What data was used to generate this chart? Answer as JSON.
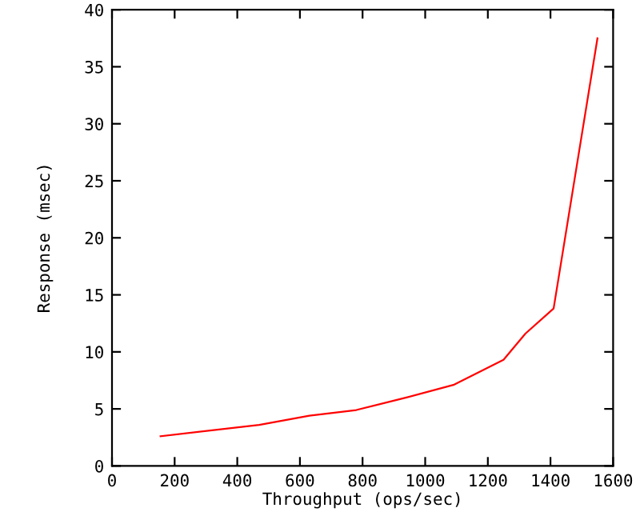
{
  "chart_data": {
    "type": "line",
    "xlabel": "Throughput (ops/sec)",
    "ylabel": "Response (msec)",
    "x": [
      155,
      470,
      630,
      780,
      940,
      1090,
      1250,
      1320,
      1410,
      1550
    ],
    "series": [
      {
        "color": "#ff0000",
        "values": [
          2.6,
          3.6,
          4.4,
          4.9,
          6.0,
          7.1,
          9.3,
          11.6,
          13.8,
          37.5
        ]
      }
    ],
    "xlim": [
      0,
      1600
    ],
    "ylim": [
      0,
      40
    ],
    "xticks": [
      0,
      200,
      400,
      600,
      800,
      1000,
      1200,
      1400,
      1600
    ],
    "yticks": [
      0,
      5,
      10,
      15,
      20,
      25,
      30,
      35,
      40
    ],
    "grid": false,
    "legend": false,
    "marker": "none",
    "line_style": "solid"
  }
}
